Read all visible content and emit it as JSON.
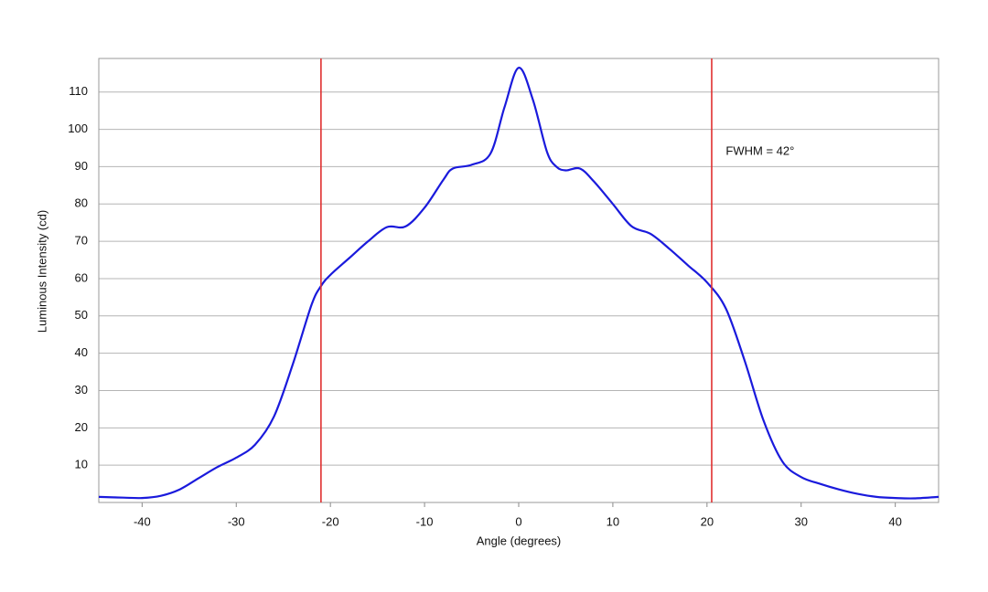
{
  "chart_data": {
    "type": "line",
    "x_label": "Angle (degrees)",
    "y_label": "Luminous Intensity (cd)",
    "annotation": {
      "text": "FWHM = 42°",
      "x": 22,
      "y": 94
    },
    "vlines": [
      -21,
      20.5
    ],
    "vline_color": "#e03030",
    "x": [
      -44.6,
      -42,
      -40,
      -38,
      -36,
      -34,
      -32,
      -30,
      -28,
      -26,
      -24,
      -22,
      -21,
      -20,
      -18,
      -16,
      -14,
      -12,
      -10,
      -8,
      -7,
      -5,
      -3,
      -1.5,
      0,
      1.5,
      3,
      4,
      5,
      6.5,
      8,
      10,
      12,
      14,
      16,
      18,
      20,
      22,
      24,
      26,
      28,
      30,
      32,
      34,
      36,
      38,
      40,
      42,
      44.6
    ],
    "series": [
      {
        "color": "#1a1adc",
        "values": [
          1.5,
          1.3,
          1.2,
          1.8,
          3.5,
          6.5,
          9.5,
          12,
          15.5,
          23,
          37,
          53,
          58,
          61,
          65.5,
          70,
          73.8,
          74,
          79,
          86.5,
          89.5,
          90.5,
          93.5,
          106,
          116.5,
          108,
          94,
          90,
          89,
          89.5,
          86,
          80,
          74,
          72,
          68,
          63.5,
          59,
          52,
          38,
          22,
          11,
          6.8,
          5,
          3.5,
          2.3,
          1.5,
          1.2,
          1.1,
          1.5
        ]
      }
    ],
    "xlim": [
      -44.6,
      44.6
    ],
    "ylim": [
      0,
      119
    ],
    "xticks": [
      -40,
      -30,
      -20,
      -10,
      0,
      10,
      20,
      30,
      40
    ],
    "yticks": [
      10,
      20,
      30,
      40,
      50,
      60,
      70,
      80,
      90,
      100,
      110
    ],
    "grid": true
  }
}
